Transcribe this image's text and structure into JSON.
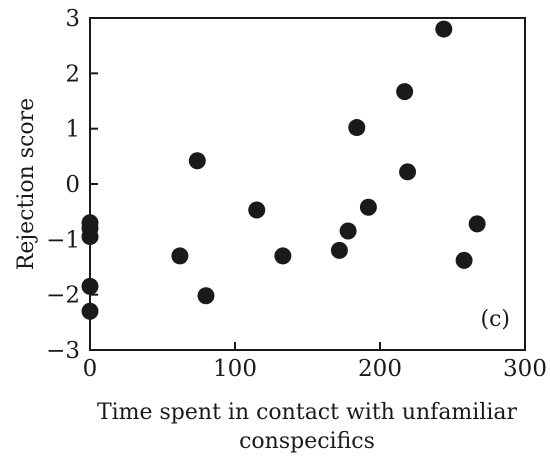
{
  "chart_data": {
    "type": "scatter",
    "title": "",
    "panel_label": "(c)",
    "xlabel_lines": [
      "Time spent in contact with unfamiliar",
      "conspecifics"
    ],
    "ylabel": "Rejection score",
    "xlim": [
      0,
      300
    ],
    "ylim": [
      -3,
      3
    ],
    "x_ticks": [
      0,
      100,
      200,
      300
    ],
    "y_ticks": [
      3,
      2,
      1,
      0,
      -1,
      -2,
      -3
    ],
    "y_tick_labels": [
      "3",
      "2",
      "1",
      "0",
      "−1",
      "−2",
      "−3"
    ],
    "grid": false,
    "marker_color": "#1a1a1a",
    "points": [
      {
        "x": 0,
        "y": -0.7
      },
      {
        "x": 0,
        "y": -0.8
      },
      {
        "x": 0,
        "y": -0.95
      },
      {
        "x": 0,
        "y": -1.85
      },
      {
        "x": 0,
        "y": -2.3
      },
      {
        "x": 62,
        "y": -1.3
      },
      {
        "x": 74,
        "y": 0.42
      },
      {
        "x": 80,
        "y": -2.02
      },
      {
        "x": 115,
        "y": -0.47
      },
      {
        "x": 133,
        "y": -1.3
      },
      {
        "x": 172,
        "y": -1.2
      },
      {
        "x": 178,
        "y": -0.85
      },
      {
        "x": 184,
        "y": 1.02
      },
      {
        "x": 192,
        "y": -0.42
      },
      {
        "x": 217,
        "y": 1.67
      },
      {
        "x": 219,
        "y": 0.22
      },
      {
        "x": 244,
        "y": 2.8
      },
      {
        "x": 258,
        "y": -1.38
      },
      {
        "x": 267,
        "y": -0.72
      }
    ]
  }
}
